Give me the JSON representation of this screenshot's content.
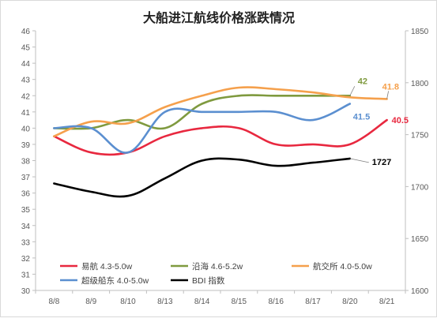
{
  "chart_data": {
    "type": "line",
    "title": "大船进江航线价格涨跌情况",
    "categories": [
      "8/8",
      "8/9",
      "8/10",
      "8/13",
      "8/14",
      "8/15",
      "8/16",
      "8/17",
      "8/20",
      "8/21"
    ],
    "y_left": {
      "min": 30,
      "max": 46,
      "step": 1
    },
    "y_right": {
      "min": 1600,
      "max": 1850,
      "step": 50
    },
    "grid": false,
    "legend_position": "bottom-left",
    "series": [
      {
        "name": "易航 4.3-5.0w",
        "axis": "left",
        "color": "#e8283f",
        "values": [
          39.5,
          38.5,
          38.5,
          39.5,
          40,
          40,
          39,
          39,
          39,
          40.5
        ],
        "end_label": "40.5"
      },
      {
        "name": "沿海 4.6-5.2w",
        "axis": "left",
        "color": "#7f9a3f",
        "values": [
          40,
          40,
          40.5,
          40,
          41.5,
          42,
          42,
          42,
          42,
          null
        ],
        "end_label": "42"
      },
      {
        "name": "航交所 4.0-5.0w",
        "axis": "left",
        "color": "#f5a04c",
        "values": [
          39.5,
          40.4,
          40.3,
          41.3,
          42,
          42.5,
          42.4,
          42.2,
          41.9,
          41.8
        ],
        "end_label": "41.8"
      },
      {
        "name": "超级船东 4.0-5.0w",
        "axis": "left",
        "color": "#5b8fd0",
        "values": [
          40,
          40,
          38.5,
          41,
          41,
          41,
          41,
          40.5,
          41.5,
          null
        ],
        "end_label": "41.5"
      },
      {
        "name": "BDI 指数",
        "axis": "right",
        "color": "#000000",
        "values": [
          1703,
          1695,
          1691,
          1708,
          1725,
          1726,
          1720,
          1723,
          1727,
          null
        ],
        "end_label": "1727"
      }
    ]
  }
}
